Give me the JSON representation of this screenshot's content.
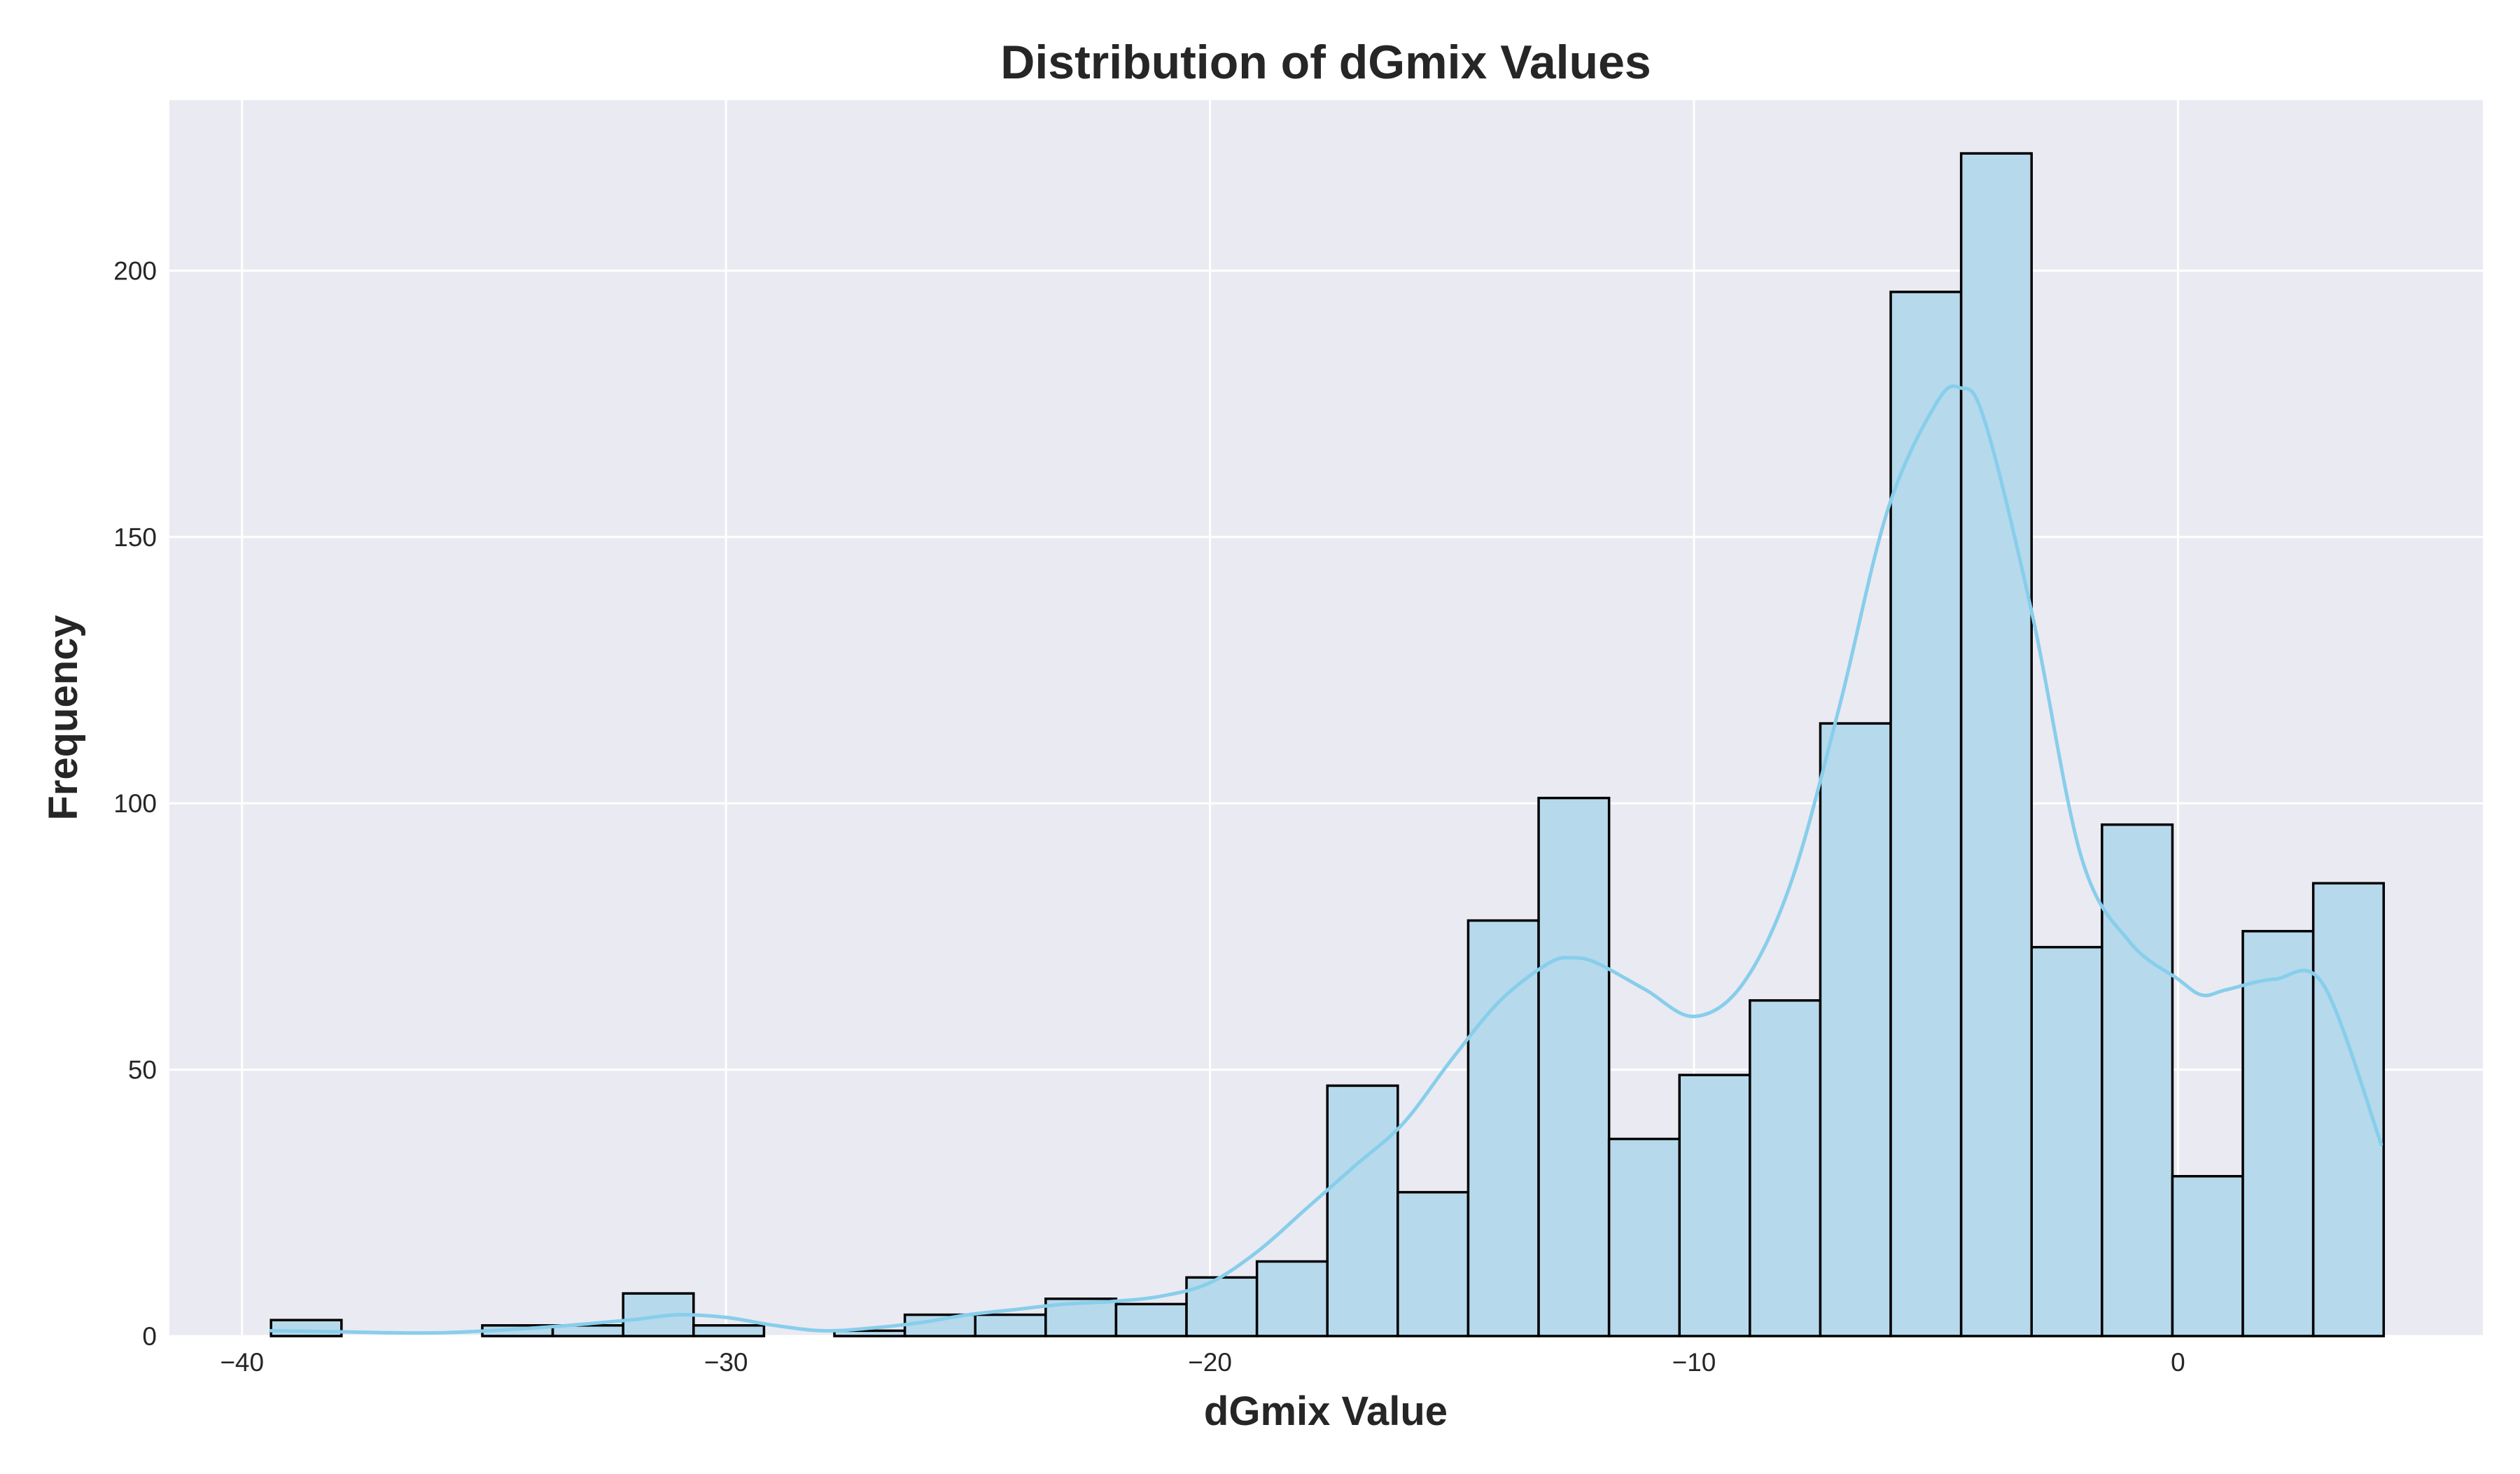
{
  "chart_data": {
    "type": "bar",
    "histogram": true,
    "title": "Distribution of dGmix Values",
    "xlabel": "dGmix Value",
    "ylabel": "Frequency",
    "xlim": [
      -41.5,
      6.3
    ],
    "ylim": [
      0,
      232
    ],
    "xticks": [
      -40,
      -30,
      -20,
      -10,
      0
    ],
    "xtick_labels": [
      "−40",
      "−30",
      "−20",
      "−10",
      "0"
    ],
    "yticks": [
      0,
      50,
      100,
      150,
      200
    ],
    "ytick_labels": [
      "0",
      "50",
      "100",
      "150",
      "200"
    ],
    "grid": true,
    "bin_start": -39.4,
    "bin_width": 1.455,
    "counts": [
      3,
      0,
      0,
      2,
      2,
      8,
      2,
      0,
      1,
      4,
      4,
      7,
      6,
      11,
      14,
      47,
      27,
      78,
      101,
      37,
      49,
      63,
      115,
      196,
      222,
      73,
      96,
      30,
      76,
      85
    ],
    "kde": {
      "x": [
        -39.4,
        -38,
        -36,
        -34,
        -32,
        -31,
        -30,
        -29,
        -28,
        -27,
        -26,
        -25,
        -24,
        -23,
        -22,
        -21,
        -20,
        -19,
        -18,
        -17,
        -16,
        -15,
        -14,
        -13,
        -12.5,
        -12,
        -11,
        -10,
        -9,
        -8,
        -7,
        -6,
        -5,
        -4.5,
        -4,
        -3,
        -2,
        -1,
        0,
        0.5,
        1,
        2,
        3,
        4.2
      ],
      "y": [
        1,
        0.8,
        0.6,
        1.5,
        3,
        4,
        3.5,
        2,
        1,
        1.5,
        2.5,
        4,
        5,
        6,
        6.5,
        7.5,
        10,
        16,
        24,
        32,
        40,
        52,
        63,
        70,
        71,
        70,
        65,
        60,
        66,
        85,
        118,
        155,
        175,
        178,
        172,
        135,
        90,
        74,
        67,
        64,
        65,
        67,
        66,
        36
      ]
    },
    "colors": {
      "bar_fill": "#b6d9ec",
      "bar_edge": "#000000",
      "kde_line": "#87ceeb",
      "plot_background": "#eaeaf2",
      "grid": "#ffffff"
    }
  }
}
